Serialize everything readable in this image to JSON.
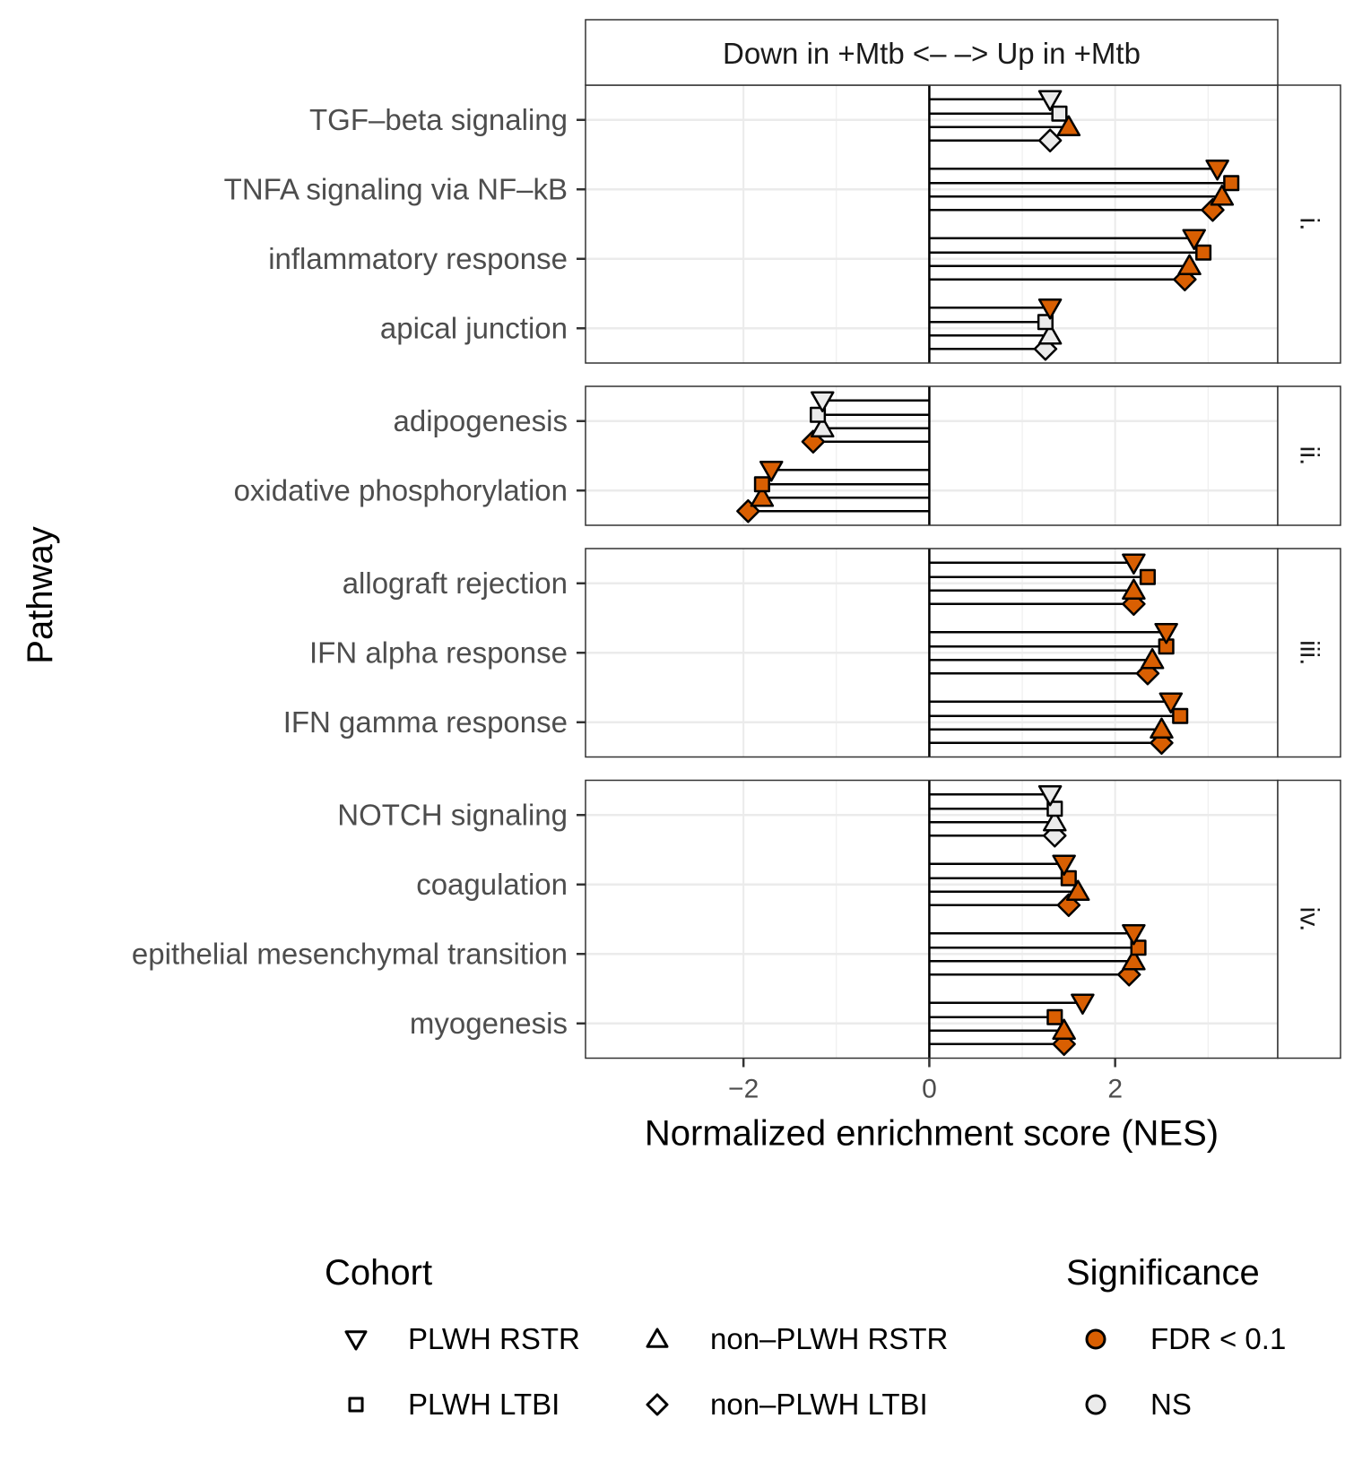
{
  "chart_data": {
    "type": "lollipop",
    "header_label": "Down in +Mtb <–  –> Up in +Mtb",
    "xlabel": "Normalized enrichment score (NES)",
    "ylabel": "Pathway",
    "xlim": [
      -3.7,
      3.75
    ],
    "xticks": [
      -2,
      0,
      2
    ],
    "xtick_labels": [
      "−2",
      "0",
      "2"
    ],
    "grid": true,
    "series": [
      "PLWH RSTR",
      "PLWH LTBI",
      "non–PLWH RSTR",
      "non–PLWH LTBI"
    ],
    "panels": [
      {
        "label": "i.",
        "pathways": [
          {
            "name": "TGF–beta signaling",
            "values": [
              1.3,
              1.4,
              1.5,
              1.3
            ],
            "significant": [
              false,
              false,
              true,
              false
            ]
          },
          {
            "name": "TNFA signaling via NF–kB",
            "values": [
              3.1,
              3.25,
              3.15,
              3.05
            ],
            "significant": [
              true,
              true,
              true,
              true
            ]
          },
          {
            "name": "inflammatory response",
            "values": [
              2.85,
              2.95,
              2.8,
              2.75
            ],
            "significant": [
              true,
              true,
              true,
              true
            ]
          },
          {
            "name": "apical junction",
            "values": [
              1.3,
              1.25,
              1.3,
              1.25
            ],
            "significant": [
              true,
              false,
              false,
              false
            ]
          }
        ]
      },
      {
        "label": "ii.",
        "pathways": [
          {
            "name": "adipogenesis",
            "values": [
              -1.15,
              -1.2,
              -1.15,
              -1.25
            ],
            "significant": [
              false,
              false,
              false,
              true
            ]
          },
          {
            "name": "oxidative phosphorylation",
            "values": [
              -1.7,
              -1.8,
              -1.8,
              -1.95
            ],
            "significant": [
              true,
              true,
              true,
              true
            ]
          }
        ]
      },
      {
        "label": "iii.",
        "pathways": [
          {
            "name": "allograft rejection",
            "values": [
              2.2,
              2.35,
              2.2,
              2.2
            ],
            "significant": [
              true,
              true,
              true,
              true
            ]
          },
          {
            "name": "IFN alpha response",
            "values": [
              2.55,
              2.55,
              2.4,
              2.35
            ],
            "significant": [
              true,
              true,
              true,
              true
            ]
          },
          {
            "name": "IFN gamma response",
            "values": [
              2.6,
              2.7,
              2.5,
              2.5
            ],
            "significant": [
              true,
              true,
              true,
              true
            ]
          }
        ]
      },
      {
        "label": "iv.",
        "pathways": [
          {
            "name": "NOTCH signaling",
            "values": [
              1.3,
              1.35,
              1.35,
              1.35
            ],
            "significant": [
              false,
              false,
              false,
              false
            ]
          },
          {
            "name": "coagulation",
            "values": [
              1.45,
              1.5,
              1.6,
              1.5
            ],
            "significant": [
              true,
              true,
              true,
              true
            ]
          },
          {
            "name": "epithelial mesenchymal transition",
            "values": [
              2.2,
              2.25,
              2.2,
              2.15
            ],
            "significant": [
              true,
              true,
              true,
              true
            ]
          },
          {
            "name": "myogenesis",
            "values": [
              1.65,
              1.35,
              1.45,
              1.45
            ],
            "significant": [
              true,
              true,
              true,
              true
            ]
          }
        ]
      }
    ],
    "legend": {
      "cohort_title": "Cohort",
      "cohort_items": [
        {
          "label": "PLWH RSTR",
          "shape": "triangle-down"
        },
        {
          "label": "non–PLWH RSTR",
          "shape": "triangle-up"
        },
        {
          "label": "PLWH LTBI",
          "shape": "square"
        },
        {
          "label": "non–PLWH LTBI",
          "shape": "diamond"
        }
      ],
      "significance_title": "Significance",
      "significance_items": [
        {
          "label": "FDR < 0.1",
          "color": "#D95F02"
        },
        {
          "label": "NS",
          "color": "#EBEBEB"
        }
      ]
    },
    "colors": {
      "significant": "#D95F02",
      "ns": "#EBEBEB",
      "grid": "#EBEBEB"
    }
  }
}
